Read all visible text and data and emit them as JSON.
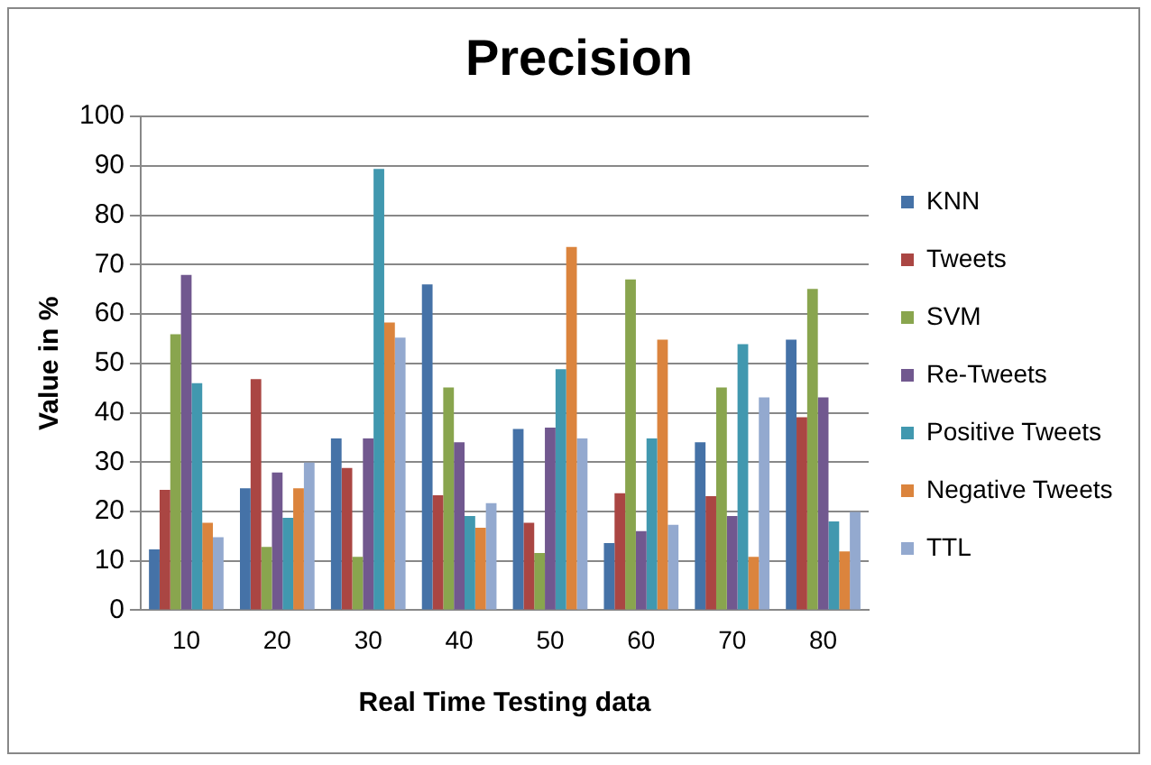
{
  "chart_data": {
    "type": "bar",
    "title": "Precision",
    "xlabel": "Real Time Testing data",
    "ylabel": "Value in %",
    "categories": [
      "10",
      "20",
      "30",
      "40",
      "50",
      "60",
      "70",
      "80"
    ],
    "series": [
      {
        "name": "KNN",
        "color": "#4572a7",
        "values": [
          12.3,
          24.7,
          34.8,
          66,
          36.7,
          13.6,
          34,
          54.8
        ]
      },
      {
        "name": "Tweets",
        "color": "#aa4643",
        "values": [
          24.4,
          46.8,
          28.8,
          23.3,
          17.7,
          23.7,
          23.1,
          39.1
        ]
      },
      {
        "name": "SVM",
        "color": "#89a54e",
        "values": [
          55.9,
          12.8,
          10.8,
          45.1,
          11.6,
          67,
          45.1,
          65.1
        ]
      },
      {
        "name": "Re-Tweets",
        "color": "#71588f",
        "values": [
          67.9,
          27.9,
          34.8,
          34,
          37,
          16,
          19.1,
          43.1
        ]
      },
      {
        "name": "Positive Tweets",
        "color": "#4198af",
        "values": [
          46,
          18.7,
          89.4,
          19.1,
          48.8,
          34.8,
          53.9,
          18
        ]
      },
      {
        "name": "Negative Tweets",
        "color": "#db843d",
        "values": [
          17.7,
          24.7,
          58.3,
          16.7,
          73.6,
          54.8,
          10.8,
          11.9
        ]
      },
      {
        "name": "TTL",
        "color": "#93a9cf",
        "values": [
          14.8,
          29.9,
          55.2,
          21.7,
          34.8,
          17.3,
          43.1,
          19.9
        ]
      }
    ],
    "ylim": [
      0,
      100
    ],
    "yticks": [
      0,
      10,
      20,
      30,
      40,
      50,
      60,
      70,
      80,
      90,
      100
    ],
    "grid": "y",
    "legend": "right"
  }
}
